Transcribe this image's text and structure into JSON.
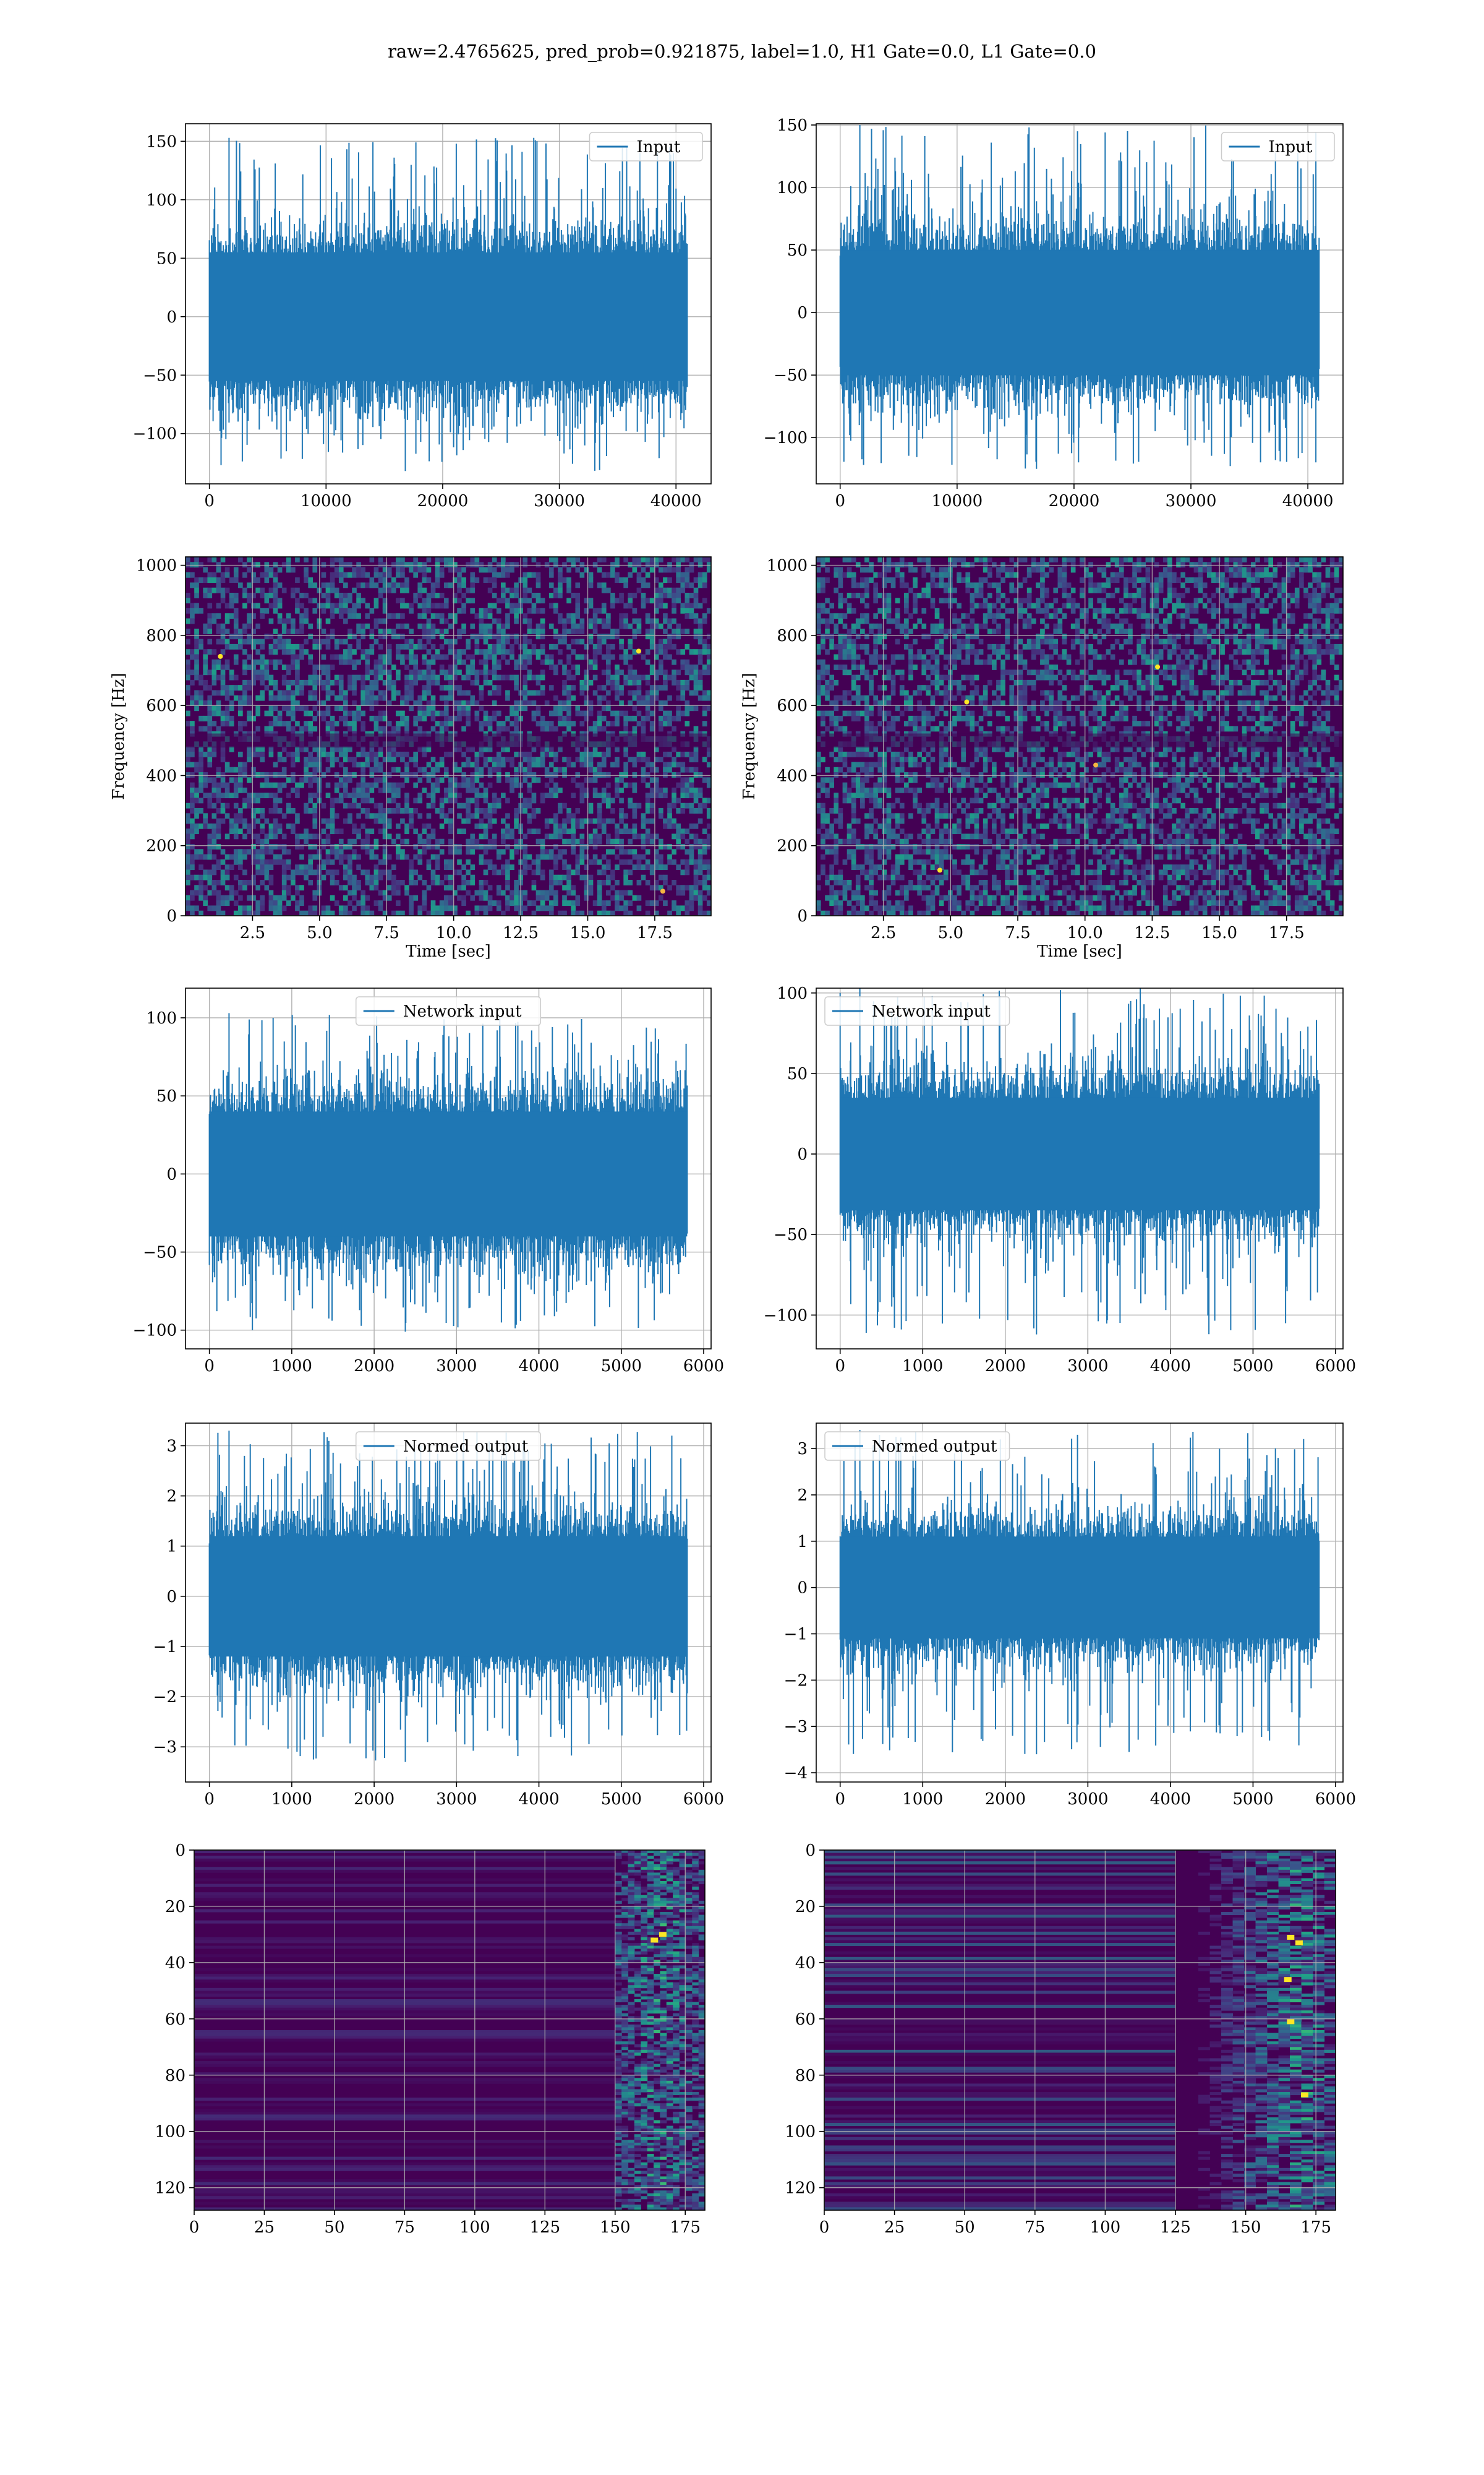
{
  "figure": {
    "title": "raw=2.4765625, pred_prob=0.921875, label=1.0, H1 Gate=0.0, L1 Gate=0.0",
    "colors": {
      "line": "#1f77b4",
      "grid": "#b0b0b0",
      "spines": "#000000",
      "viridis_dark": "#440154",
      "viridis_blue": "#31688e",
      "viridis_green": "#35b779",
      "viridis_yellow": "#fde725"
    }
  },
  "chart_data": [
    {
      "id": "h1_input",
      "type": "line",
      "series": [
        {
          "name": "Input"
        }
      ],
      "legend": "upper right",
      "xlim": [
        -2048,
        43008
      ],
      "ylim": [
        -143,
        165
      ],
      "xticks": [
        0,
        10000,
        20000,
        30000,
        40000
      ],
      "xtick_labels": [
        "0",
        "10000",
        "20000",
        "30000",
        "40000"
      ],
      "yticks": [
        -100,
        -50,
        0,
        50,
        100,
        150
      ],
      "ytick_labels": [
        "−100",
        "−50",
        "0",
        "50",
        "100",
        "150"
      ],
      "x_range": [
        0,
        40960
      ],
      "envelope": {
        "core": [
          -55,
          55
        ],
        "peak_max": 153,
        "peak_min": -132
      },
      "grid": true
    },
    {
      "id": "l1_input",
      "type": "line",
      "series": [
        {
          "name": "Input"
        }
      ],
      "legend": "upper right",
      "xlim": [
        -2048,
        43008
      ],
      "ylim": [
        -137,
        151
      ],
      "xticks": [
        0,
        10000,
        20000,
        30000,
        40000
      ],
      "xtick_labels": [
        "0",
        "10000",
        "20000",
        "30000",
        "40000"
      ],
      "yticks": [
        -100,
        -50,
        0,
        50,
        100,
        150
      ],
      "ytick_labels": [
        "−100",
        "−50",
        "0",
        "50",
        "100",
        "150"
      ],
      "x_range": [
        0,
        40960
      ],
      "envelope": {
        "core": [
          -50,
          50
        ],
        "peak_max": 150,
        "peak_min": -125
      },
      "grid": true
    },
    {
      "id": "h1_spectrogram",
      "type": "heatmap",
      "xlabel": "Time [sec]",
      "ylabel": "Frequency [Hz]",
      "xlim": [
        0.0,
        19.6
      ],
      "ylim": [
        0,
        1024
      ],
      "xticks": [
        2.5,
        5.0,
        7.5,
        10.0,
        12.5,
        15.0,
        17.5
      ],
      "xtick_labels": [
        "2.5",
        "5.0",
        "7.5",
        "10.0",
        "12.5",
        "15.0",
        "17.5"
      ],
      "yticks": [
        0,
        200,
        400,
        600,
        800,
        1000
      ],
      "ytick_labels": [
        "0",
        "200",
        "400",
        "600",
        "800",
        "1000"
      ],
      "colormap": "viridis",
      "bright_spots": [
        [
          17.8,
          70
        ],
        [
          16.9,
          755
        ],
        [
          1.3,
          740
        ]
      ],
      "grid": true
    },
    {
      "id": "l1_spectrogram",
      "type": "heatmap",
      "xlabel": "Time [sec]",
      "ylabel": "Frequency [Hz]",
      "xlim": [
        0.0,
        19.6
      ],
      "ylim": [
        0,
        1024
      ],
      "xticks": [
        2.5,
        5.0,
        7.5,
        10.0,
        12.5,
        15.0,
        17.5
      ],
      "xtick_labels": [
        "2.5",
        "5.0",
        "7.5",
        "10.0",
        "12.5",
        "15.0",
        "17.5"
      ],
      "yticks": [
        0,
        200,
        400,
        600,
        800,
        1000
      ],
      "ytick_labels": [
        "0",
        "200",
        "400",
        "600",
        "800",
        "1000"
      ],
      "colormap": "viridis",
      "bright_spots": [
        [
          10.4,
          430
        ],
        [
          4.6,
          130
        ],
        [
          5.6,
          610
        ],
        [
          12.7,
          710
        ]
      ],
      "grid": true
    },
    {
      "id": "h1_network_input",
      "type": "line",
      "series": [
        {
          "name": "Network input"
        }
      ],
      "legend": "upper center",
      "xlim": [
        -290,
        6090
      ],
      "ylim": [
        -112,
        119
      ],
      "xticks": [
        0,
        1000,
        2000,
        3000,
        4000,
        5000,
        6000
      ],
      "xtick_labels": [
        "0",
        "1000",
        "2000",
        "3000",
        "4000",
        "5000",
        "6000"
      ],
      "yticks": [
        -100,
        -50,
        0,
        50,
        100
      ],
      "ytick_labels": [
        "−100",
        "−50",
        "0",
        "50",
        "100"
      ],
      "x_range": [
        0,
        5800
      ],
      "envelope": {
        "core": [
          -40,
          40
        ],
        "peak_max": 103,
        "peak_min": -101
      },
      "grid": true
    },
    {
      "id": "l1_network_input",
      "type": "line",
      "series": [
        {
          "name": "Network input"
        }
      ],
      "legend": "upper left",
      "xlim": [
        -290,
        6090
      ],
      "ylim": [
        -121,
        103
      ],
      "xticks": [
        0,
        1000,
        2000,
        3000,
        4000,
        5000,
        6000
      ],
      "xtick_labels": [
        "0",
        "1000",
        "2000",
        "3000",
        "4000",
        "5000",
        "6000"
      ],
      "yticks": [
        -100,
        -50,
        0,
        50,
        100
      ],
      "ytick_labels": [
        "−100",
        "−50",
        "0",
        "50",
        "100"
      ],
      "x_range": [
        0,
        5800
      ],
      "envelope": {
        "core": [
          -35,
          35
        ],
        "peak_max": 103,
        "peak_min": -112
      },
      "grid": true
    },
    {
      "id": "h1_normed_output",
      "type": "line",
      "series": [
        {
          "name": "Normed output"
        }
      ],
      "legend": "upper center",
      "xlim": [
        -290,
        6090
      ],
      "ylim": [
        -3.7,
        3.45
      ],
      "xticks": [
        0,
        1000,
        2000,
        3000,
        4000,
        5000,
        6000
      ],
      "xtick_labels": [
        "0",
        "1000",
        "2000",
        "3000",
        "4000",
        "5000",
        "6000"
      ],
      "yticks": [
        -3,
        -2,
        -1,
        0,
        1,
        2,
        3
      ],
      "ytick_labels": [
        "−3",
        "−2",
        "−1",
        "0",
        "1",
        "2",
        "3"
      ],
      "x_range": [
        0,
        5800
      ],
      "envelope": {
        "core": [
          -1.2,
          1.2
        ],
        "peak_max": 3.3,
        "peak_min": -3.3
      },
      "grid": true
    },
    {
      "id": "l1_normed_output",
      "type": "line",
      "series": [
        {
          "name": "Normed output"
        }
      ],
      "legend": "upper left",
      "xlim": [
        -290,
        6090
      ],
      "ylim": [
        -4.2,
        3.55
      ],
      "xticks": [
        0,
        1000,
        2000,
        3000,
        4000,
        5000,
        6000
      ],
      "xtick_labels": [
        "0",
        "1000",
        "2000",
        "3000",
        "4000",
        "5000",
        "6000"
      ],
      "yticks": [
        -4,
        -3,
        -2,
        -1,
        0,
        1,
        2,
        3
      ],
      "ytick_labels": [
        "−4",
        "−3",
        "−2",
        "−1",
        "0",
        "1",
        "2",
        "3"
      ],
      "x_range": [
        0,
        5800
      ],
      "envelope": {
        "core": [
          -1.1,
          1.1
        ],
        "peak_max": 3.4,
        "peak_min": -3.6
      },
      "grid": true
    },
    {
      "id": "h1_feature_map",
      "type": "heatmap",
      "colormap": "viridis",
      "y_inverted": true,
      "xlim": [
        0,
        182
      ],
      "ylim": [
        128,
        0
      ],
      "xticks": [
        0,
        25,
        50,
        75,
        100,
        125,
        150,
        175
      ],
      "xtick_labels": [
        "0",
        "25",
        "50",
        "75",
        "100",
        "125",
        "150",
        "175"
      ],
      "yticks": [
        0,
        20,
        40,
        60,
        80,
        100,
        120
      ],
      "ytick_labels": [
        "0",
        "20",
        "40",
        "60",
        "80",
        "100",
        "120"
      ],
      "activity": {
        "band_start": 150,
        "peak_col": 165,
        "bright_spots": [
          [
            164,
            32
          ],
          [
            167,
            30
          ]
        ]
      },
      "grid": true
    },
    {
      "id": "l1_feature_map",
      "type": "heatmap",
      "colormap": "viridis",
      "y_inverted": true,
      "xlim": [
        0,
        182
      ],
      "ylim": [
        128,
        0
      ],
      "xticks": [
        0,
        25,
        50,
        75,
        100,
        125,
        150,
        175
      ],
      "xtick_labels": [
        "0",
        "25",
        "50",
        "75",
        "100",
        "125",
        "150",
        "175"
      ],
      "yticks": [
        0,
        20,
        40,
        60,
        80,
        100,
        120
      ],
      "ytick_labels": [
        "0",
        "20",
        "40",
        "60",
        "80",
        "100",
        "120"
      ],
      "activity": {
        "band_start": 125,
        "peak_col": 168,
        "bright_spots": [
          [
            165,
            46
          ],
          [
            166,
            61
          ],
          [
            166,
            31
          ],
          [
            171,
            87
          ],
          [
            169,
            33
          ]
        ]
      },
      "grid": true
    }
  ]
}
